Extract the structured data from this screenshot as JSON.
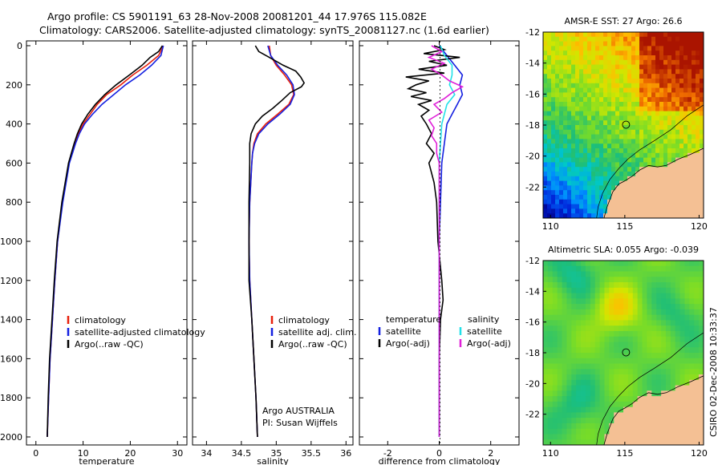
{
  "title": {
    "line1": "Argo profile: CS 5901191_63 28-Nov-2008 20081201_44 17.976S 115.082E",
    "line2": "Climatology: CARS2006. Satellite-adjusted climatology: synTS_20081127.nc (1.6d earlier)"
  },
  "colors": {
    "climatology": "#e8200c",
    "satellite": "#1420e0",
    "argo": "#000000",
    "salinity_satellite": "#22e0e8",
    "salinity_argo": "#e020d8",
    "land": "#f4c094"
  },
  "credit": "CSIRO 02-Dec-2008 10:33:37",
  "chart_data": [
    {
      "type": "line",
      "id": "temperature",
      "xlabel": "temperature",
      "ylabel": "",
      "xlim": [
        -2,
        32
      ],
      "ylim": [
        2050,
        0
      ],
      "xticks": [
        0,
        10,
        20,
        30
      ],
      "yticks": [
        0,
        200,
        400,
        600,
        800,
        1000,
        1200,
        1400,
        1600,
        1800,
        2000
      ],
      "legend_title": "",
      "legend": [
        "climatology",
        "satellite-adjusted climatology",
        "Argo(..raw -QC)"
      ],
      "series": [
        {
          "name": "climatology",
          "color_key": "climatology",
          "depth": [
            0,
            50,
            100,
            150,
            200,
            250,
            300,
            350,
            400,
            450,
            500,
            600,
            800,
            1000,
            1200,
            1400,
            1600,
            1800,
            2000
          ],
          "values": [
            27.0,
            26.0,
            23.5,
            20.5,
            18.0,
            15.0,
            13.0,
            11.5,
            10.0,
            9.0,
            8.2,
            7.0,
            5.6,
            4.6,
            4.0,
            3.5,
            3.0,
            2.7,
            2.4
          ]
        },
        {
          "name": "satellite-adjusted climatology",
          "color_key": "satellite",
          "depth": [
            0,
            50,
            100,
            150,
            200,
            250,
            300,
            350,
            400,
            450,
            500,
            600,
            800,
            1000,
            1200,
            1400,
            1600,
            1800,
            2000
          ],
          "values": [
            27.0,
            26.5,
            24.5,
            22.0,
            19.0,
            16.5,
            14.0,
            12.0,
            10.3,
            9.2,
            8.4,
            7.1,
            5.7,
            4.6,
            4.0,
            3.5,
            3.0,
            2.7,
            2.4
          ]
        },
        {
          "name": "Argo(..raw -QC)",
          "color_key": "argo",
          "depth": [
            0,
            30,
            60,
            100,
            150,
            200,
            250,
            300,
            350,
            400,
            450,
            500,
            600,
            800,
            1000,
            1200,
            1400,
            1600,
            1800,
            2000
          ],
          "values": [
            26.8,
            26.0,
            24.2,
            22.5,
            19.8,
            17.0,
            14.6,
            12.6,
            11.0,
            9.7,
            8.8,
            8.1,
            6.9,
            5.5,
            4.5,
            3.9,
            3.4,
            2.9,
            2.6,
            2.4
          ]
        }
      ]
    },
    {
      "type": "line",
      "id": "salinity",
      "xlabel": "salinity",
      "ylabel": "",
      "xlim": [
        33.8,
        36.1
      ],
      "ylim": [
        2050,
        0
      ],
      "xticks": [
        34,
        34.5,
        35,
        35.5,
        36
      ],
      "yticks": [
        0,
        200,
        400,
        600,
        800,
        1000,
        1200,
        1400,
        1600,
        1800,
        2000
      ],
      "legend_title": "",
      "legend": [
        "climatology",
        "satellite adj. clim.",
        "Argo(..raw -QC)"
      ],
      "annotation": [
        "Argo AUSTRALIA",
        "PI: Susan Wijffels"
      ],
      "series": [
        {
          "name": "climatology",
          "color_key": "climatology",
          "depth": [
            0,
            50,
            100,
            150,
            200,
            250,
            300,
            350,
            400,
            450,
            500,
            550,
            600,
            800,
            1000,
            1200,
            1400,
            1600,
            1800,
            2000
          ],
          "values": [
            34.9,
            34.92,
            35.0,
            35.12,
            35.22,
            35.25,
            35.18,
            35.02,
            34.85,
            34.73,
            34.68,
            34.66,
            34.65,
            34.62,
            34.61,
            34.62,
            34.65,
            34.68,
            34.71,
            34.73
          ]
        },
        {
          "name": "satellite adj. clim.",
          "color_key": "satellite",
          "depth": [
            0,
            50,
            100,
            150,
            200,
            250,
            300,
            350,
            400,
            450,
            500,
            550,
            600,
            800,
            1000,
            1200,
            1400,
            1600,
            1800,
            2000
          ],
          "values": [
            34.88,
            34.92,
            35.02,
            35.15,
            35.24,
            35.26,
            35.2,
            35.05,
            34.88,
            34.75,
            34.69,
            34.66,
            34.65,
            34.62,
            34.61,
            34.62,
            34.65,
            34.68,
            34.71,
            34.73
          ]
        },
        {
          "name": "Argo(..raw -QC)",
          "color_key": "argo",
          "depth": [
            0,
            30,
            60,
            100,
            130,
            160,
            190,
            210,
            240,
            280,
            320,
            360,
            400,
            450,
            500,
            550,
            600,
            800,
            1000,
            1200,
            1400,
            1600,
            1800,
            2000
          ],
          "values": [
            34.7,
            34.75,
            34.9,
            35.1,
            35.28,
            35.35,
            35.4,
            35.36,
            35.2,
            35.08,
            34.95,
            34.8,
            34.7,
            34.64,
            34.62,
            34.62,
            34.62,
            34.61,
            34.61,
            34.61,
            34.65,
            34.68,
            34.71,
            34.73
          ]
        }
      ]
    },
    {
      "type": "line",
      "id": "difference",
      "xlabel": "difference from climatology",
      "ylabel": "",
      "xlim": [
        -3.1,
        3.1
      ],
      "ylim": [
        2050,
        0
      ],
      "xticks": [
        -2,
        0,
        2
      ],
      "yticks": [
        0,
        200,
        400,
        600,
        800,
        1000,
        1200,
        1400,
        1600,
        1800,
        2000
      ],
      "legend_title": "temperature",
      "legend_title_2": "salinity",
      "legend": [
        "satellite",
        "Argo(-adj)"
      ],
      "legend_2": [
        "satellite",
        "Argo(-adj)"
      ],
      "series": [
        {
          "name": "temperature satellite",
          "color_key": "satellite",
          "depth": [
            0,
            50,
            100,
            150,
            200,
            250,
            300,
            350,
            400,
            500,
            600,
            800,
            1000,
            1200,
            1400,
            1600,
            1800,
            2000
          ],
          "values": [
            0.0,
            0.3,
            0.6,
            0.9,
            0.8,
            0.9,
            0.7,
            0.5,
            0.3,
            0.2,
            0.1,
            0.05,
            0.0,
            0.0,
            0.0,
            0.0,
            0.0,
            0.0
          ]
        },
        {
          "name": "temperature Argo(-adj)",
          "color_key": "argo",
          "depth": [
            0,
            20,
            40,
            60,
            80,
            100,
            120,
            140,
            160,
            180,
            200,
            220,
            240,
            260,
            280,
            300,
            330,
            360,
            400,
            450,
            500,
            550,
            600,
            700,
            800,
            1000,
            1200,
            1300,
            1400,
            1600,
            1800,
            2000
          ],
          "values": [
            -0.2,
            0.2,
            -0.6,
            0.8,
            -0.4,
            0.3,
            -0.8,
            0.2,
            -1.3,
            -0.4,
            -0.9,
            -1.2,
            -0.5,
            -1.1,
            -0.3,
            -0.8,
            -0.4,
            -0.7,
            -0.5,
            -0.3,
            -0.5,
            -0.2,
            -0.4,
            -0.2,
            -0.1,
            -0.05,
            0.1,
            0.15,
            0.05,
            0.0,
            0.0,
            0.0
          ]
        },
        {
          "name": "salinity satellite",
          "color_key": "salinity_satellite",
          "depth": [
            0,
            50,
            100,
            150,
            200,
            250,
            300,
            350,
            400,
            500,
            600,
            800,
            1000,
            1200,
            1400,
            1600,
            1800,
            2000
          ],
          "values": [
            0.05,
            0.2,
            0.5,
            0.5,
            0.4,
            0.6,
            0.3,
            0.2,
            0.1,
            0.05,
            0.0,
            0.0,
            0.0,
            0.0,
            0.0,
            0.0,
            0.0,
            0.0
          ]
        },
        {
          "name": "salinity Argo(-adj)",
          "color_key": "salinity_argo",
          "depth": [
            0,
            30,
            60,
            90,
            120,
            150,
            180,
            210,
            240,
            270,
            300,
            340,
            380,
            420,
            460,
            500,
            550,
            600,
            800,
            1000,
            1200,
            1400,
            1600,
            1800,
            2000
          ],
          "values": [
            -0.3,
            0.1,
            -0.4,
            0.2,
            -0.3,
            0.1,
            0.4,
            0.9,
            0.5,
            0.2,
            -0.2,
            0.1,
            -0.4,
            -0.2,
            -0.3,
            -0.1,
            -0.1,
            0.0,
            0.0,
            0.0,
            0.0,
            0.0,
            0.0,
            0.0,
            0.0
          ]
        }
      ]
    },
    {
      "type": "heatmap",
      "id": "sst_map",
      "title": "AMSR-E SST: 27 Argo: 26.6",
      "xlim": [
        109.5,
        120.3
      ],
      "ylim": [
        -24.0,
        -12.0
      ],
      "xticks": [
        110,
        115,
        120
      ],
      "yticks": [
        -12,
        -14,
        -16,
        -18,
        -20,
        -22
      ],
      "marker": {
        "lon": 115.082,
        "lat": -17.976
      }
    },
    {
      "type": "heatmap",
      "id": "sla_map",
      "title": "Altimetric SLA: 0.055 Argo: -0.039",
      "xlim": [
        109.5,
        120.3
      ],
      "ylim": [
        -24.0,
        -12.0
      ],
      "xticks": [
        110,
        115,
        120
      ],
      "yticks": [
        -12,
        -14,
        -16,
        -18,
        -20,
        -22
      ],
      "marker": {
        "lon": 115.082,
        "lat": -17.976
      }
    }
  ]
}
